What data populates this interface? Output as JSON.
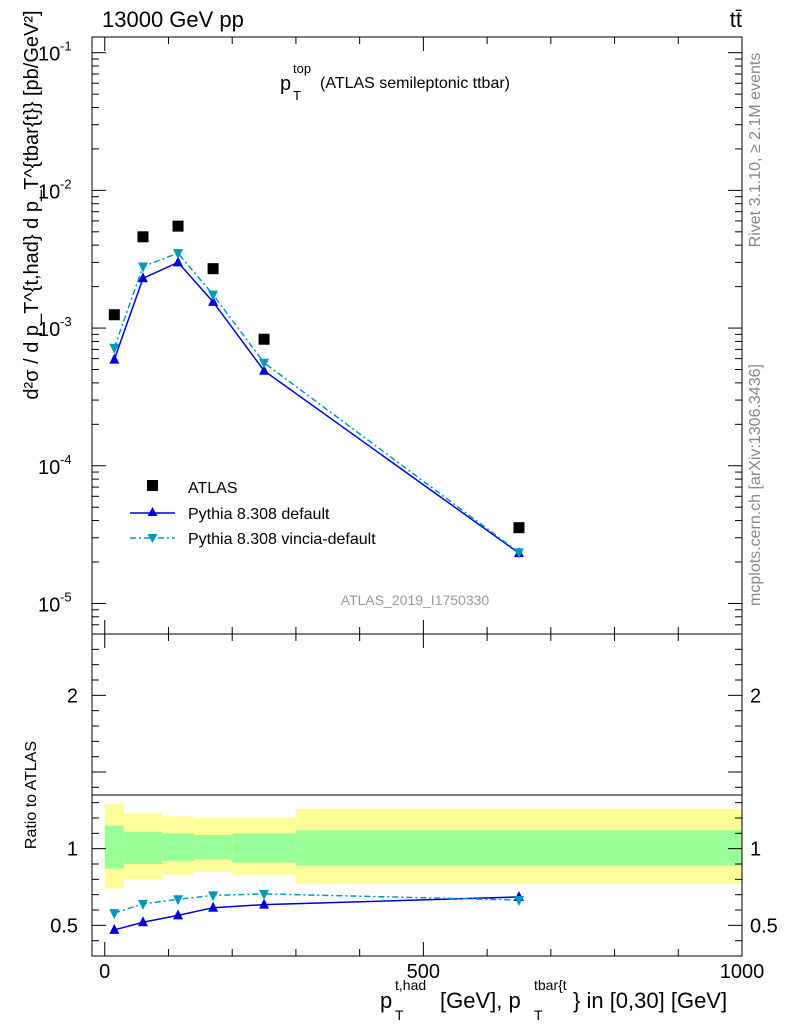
{
  "header": {
    "energy_label": "13000 GeV pp",
    "process_label": "tt̄"
  },
  "side_labels": {
    "rivet": "Rivet 3.1.10, ≥ 2.1M events",
    "mcplots": "mcplots.cern.ch [arXiv:1306.3436]"
  },
  "colors": {
    "data": "#000000",
    "default": "#0000dd",
    "vincia": "#0099bb",
    "band_inner": "#99ff99",
    "band_outer": "#ffff99"
  },
  "chart_data": [
    {
      "type": "scatter",
      "title_main": "p",
      "title_sup": "top",
      "title_sub": "T",
      "title_rest": "(ATLAS semileptonic ttbar)",
      "analysis_id": "ATLAS_2019_I1750330",
      "ylabel": "d²σ / d p_T^{t,had} d p_T^{tbar{t}} [pb/GeV²]",
      "yscale": "log",
      "ylim": [
        6e-06,
        0.13
      ],
      "xlim": [
        -20,
        1000
      ],
      "ytick_labels": [
        {
          "base": "10",
          "exp": "-5",
          "value": 1e-05
        },
        {
          "base": "10",
          "exp": "-4",
          "value": 0.0001
        },
        {
          "base": "10",
          "exp": "-3",
          "value": 0.001
        },
        {
          "base": "10",
          "exp": "-2",
          "value": 0.01
        },
        {
          "base": "10",
          "exp": "-1",
          "value": 0.1
        }
      ],
      "x": [
        15,
        60,
        115,
        170,
        250,
        650
      ],
      "series": [
        {
          "name": "ATLAS",
          "marker": "square",
          "values": [
            0.00125,
            0.0046,
            0.0055,
            0.0027,
            0.00083,
            3.55e-05
          ]
        },
        {
          "name": "Pythia 8.308 default",
          "marker": "triangle-up",
          "values": [
            0.00059,
            0.0023,
            0.003,
            0.00155,
            0.00049,
            2.32e-05
          ]
        },
        {
          "name": "Pythia 8.308 vincia-default",
          "marker": "triangle-down",
          "values": [
            0.00072,
            0.0028,
            0.0035,
            0.00175,
            0.00056,
            2.35e-05
          ]
        }
      ],
      "legend": [
        "ATLAS",
        "Pythia 8.308 default",
        "Pythia 8.308 vincia-default"
      ],
      "legend_position": "bottom-left"
    },
    {
      "type": "line",
      "ylabel": "Ratio to ATLAS",
      "xlabel": "p_T^{t,had} [GeV], p_T^{tbar{t}} in [0,30] [GeV]",
      "ylim": [
        0.3,
        2.4
      ],
      "xlim": [
        -20,
        1000
      ],
      "ytick_labels": [
        {
          "label": "0.5",
          "value": 0.5
        },
        {
          "label": "1",
          "value": 1
        },
        {
          "label": "2",
          "value": 2
        }
      ],
      "xtick_labels": [
        {
          "label": "0",
          "value": 0
        },
        {
          "label": "500",
          "value": 500
        },
        {
          "label": "1000",
          "value": 1000
        }
      ],
      "bins": [
        {
          "lo": 0,
          "hi": 30,
          "inner": [
            0.87,
            1.15
          ],
          "outer": [
            0.74,
            1.29
          ]
        },
        {
          "lo": 30,
          "hi": 90,
          "inner": [
            0.9,
            1.11
          ],
          "outer": [
            0.8,
            1.23
          ]
        },
        {
          "lo": 90,
          "hi": 140,
          "inner": [
            0.92,
            1.1
          ],
          "outer": [
            0.83,
            1.21
          ]
        },
        {
          "lo": 140,
          "hi": 200,
          "inner": [
            0.93,
            1.09
          ],
          "outer": [
            0.85,
            1.2
          ]
        },
        {
          "lo": 200,
          "hi": 300,
          "inner": [
            0.91,
            1.1
          ],
          "outer": [
            0.83,
            1.2
          ]
        },
        {
          "lo": 300,
          "hi": 1000,
          "inner": [
            0.89,
            1.12
          ],
          "outer": [
            0.77,
            1.26
          ]
        }
      ],
      "x": [
        15,
        60,
        115,
        170,
        250,
        650
      ],
      "series": [
        {
          "name": "Pythia 8.308 default",
          "values": [
            0.47,
            0.52,
            0.565,
            0.615,
            0.635,
            0.685
          ]
        },
        {
          "name": "Pythia 8.308 vincia-default",
          "values": [
            0.58,
            0.64,
            0.67,
            0.695,
            0.705,
            0.665
          ]
        }
      ]
    }
  ]
}
